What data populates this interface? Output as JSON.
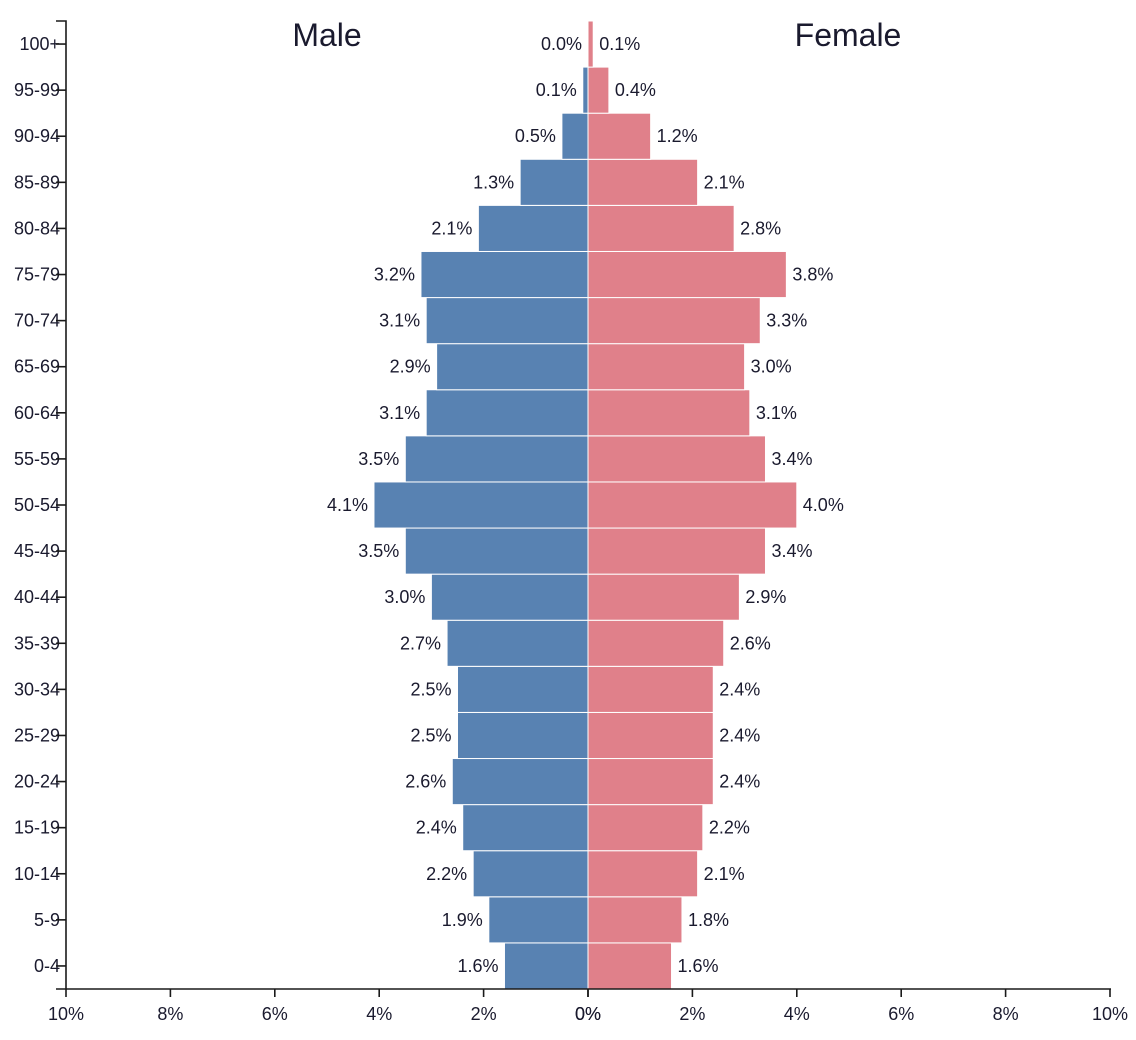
{
  "chart_data": {
    "type": "bar",
    "orientation": "horizontal",
    "layout": "population-pyramid",
    "categories": [
      "0-4",
      "5-9",
      "10-14",
      "15-19",
      "20-24",
      "25-29",
      "30-34",
      "35-39",
      "40-44",
      "45-49",
      "50-54",
      "55-59",
      "60-64",
      "65-69",
      "70-74",
      "75-79",
      "80-84",
      "85-89",
      "90-94",
      "95-99",
      "100+"
    ],
    "series": [
      {
        "name": "Male",
        "color": "#5882b2",
        "values": [
          1.6,
          1.9,
          2.2,
          2.4,
          2.6,
          2.5,
          2.5,
          2.7,
          3.0,
          3.5,
          4.1,
          3.5,
          3.1,
          2.9,
          3.1,
          3.2,
          2.1,
          1.3,
          0.5,
          0.1,
          0.0
        ],
        "labels": [
          "1.6%",
          "1.9%",
          "2.2%",
          "2.4%",
          "2.6%",
          "2.5%",
          "2.5%",
          "2.7%",
          "3.0%",
          "3.5%",
          "4.1%",
          "3.5%",
          "3.1%",
          "2.9%",
          "3.1%",
          "3.2%",
          "2.1%",
          "1.3%",
          "0.5%",
          "0.1%",
          "0.0%"
        ]
      },
      {
        "name": "Female",
        "color": "#e0808a",
        "values": [
          1.6,
          1.8,
          2.1,
          2.2,
          2.4,
          2.4,
          2.4,
          2.6,
          2.9,
          3.4,
          4.0,
          3.4,
          3.1,
          3.0,
          3.3,
          3.8,
          2.8,
          2.1,
          1.2,
          0.4,
          0.1
        ],
        "labels": [
          "1.6%",
          "1.8%",
          "2.1%",
          "2.2%",
          "2.4%",
          "2.4%",
          "2.4%",
          "2.6%",
          "2.9%",
          "3.4%",
          "4.0%",
          "3.4%",
          "3.1%",
          "3.0%",
          "3.3%",
          "3.8%",
          "2.8%",
          "2.1%",
          "1.2%",
          "0.4%",
          "0.1%"
        ]
      }
    ],
    "xlim": [
      0,
      10
    ],
    "x_ticks_left": [
      "10%",
      "8%",
      "6%",
      "4%",
      "2%",
      "0%"
    ],
    "x_ticks_right": [
      "0%",
      "2%",
      "4%",
      "6%",
      "8%",
      "10%"
    ],
    "grid": false,
    "xlabel": "",
    "ylabel": ""
  }
}
